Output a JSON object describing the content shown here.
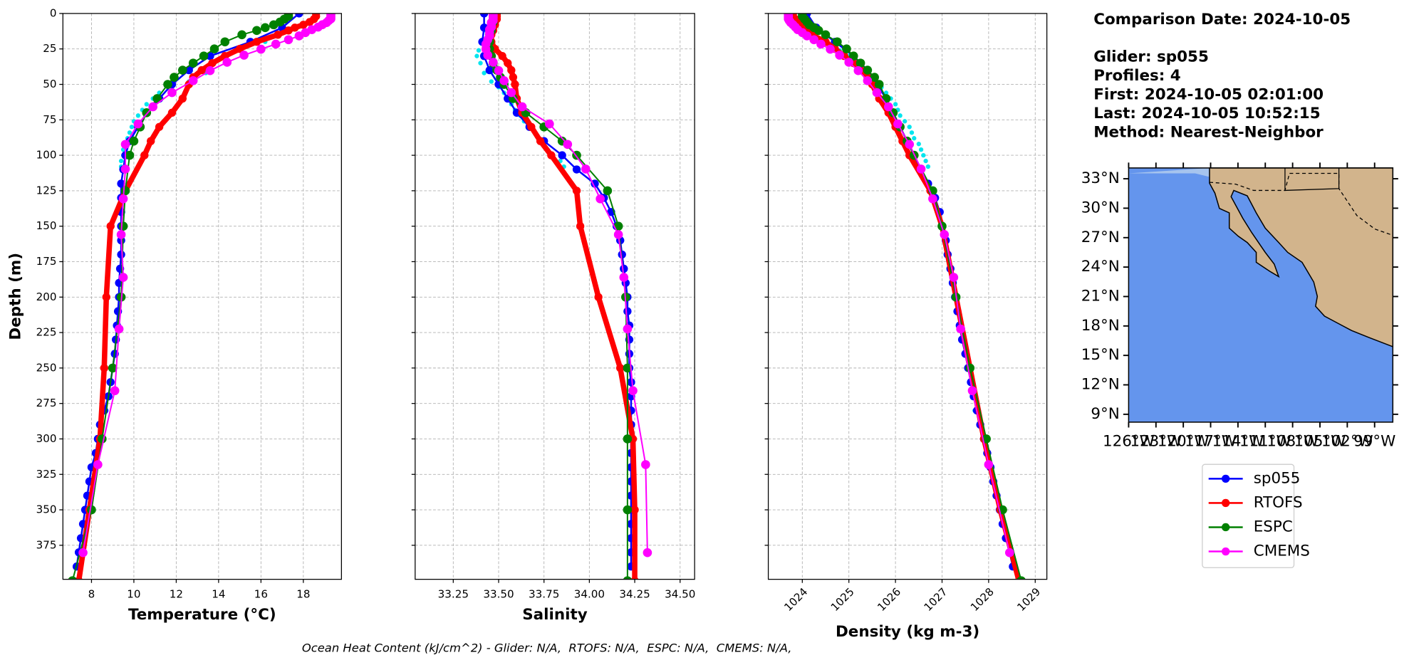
{
  "chart_data": {
    "type": "profile",
    "ylabel": "Depth (m)",
    "ylim": [
      0,
      399
    ],
    "yticks": [
      0,
      25,
      50,
      75,
      100,
      125,
      150,
      175,
      200,
      225,
      250,
      275,
      300,
      325,
      350,
      375
    ],
    "grid": true,
    "panels": [
      {
        "xlabel": "Temperature (°C)",
        "xlim": [
          6.65,
          19.8
        ],
        "xticks": [
          8,
          10,
          12,
          14,
          16,
          18
        ]
      },
      {
        "xlabel": "Salinity",
        "xlim": [
          33.04,
          34.58
        ],
        "xticks": [
          33.25,
          {
            "value": 33.5,
            "label": "33.50"
          },
          33.75,
          {
            "value": 34,
            "label": "34.00"
          },
          34.25,
          {
            "value": 34.5,
            "label": "34.50"
          }
        ]
      },
      {
        "xlabel": "Density (kg m-3)",
        "xlim": [
          1023.27,
          1029.25
        ],
        "xticks": [
          1024,
          1025,
          1026,
          1027,
          1028,
          1029
        ]
      }
    ],
    "scatter": {
      "color": "#00e5ee",
      "depth": [
        12,
        20,
        26,
        30,
        35,
        42,
        48,
        52,
        56,
        60,
        64,
        68,
        72,
        76,
        80,
        84,
        88,
        92,
        96,
        100,
        104,
        108,
        160,
        220,
        280,
        340,
        360,
        380
      ],
      "values": [
        [
          17.4,
          16.2,
          15.0,
          14.2,
          13.8,
          13.4,
          12.6,
          11.8,
          11.2,
          10.9,
          10.6,
          10.4,
          10.2,
          10.0,
          9.9,
          9.8,
          9.7,
          9.6,
          9.5,
          9.5,
          9.4,
          9.4,
          9.4,
          9.2,
          8.7,
          7.9,
          7.7,
          7.5
        ],
        [
          33.43,
          33.41,
          33.39,
          33.38,
          33.4,
          33.42,
          33.46,
          33.5,
          33.53,
          33.55,
          33.57,
          33.59,
          33.62,
          33.64,
          33.67,
          33.7,
          33.72,
          33.74,
          33.77,
          33.8,
          33.84,
          33.86,
          34.18,
          34.23,
          34.24,
          34.23,
          34.22,
          34.23
        ],
        [
          1024.2,
          1024.5,
          1024.8,
          1025.0,
          1025.2,
          1025.4,
          1025.55,
          1025.7,
          1025.8,
          1025.9,
          1026.0,
          1026.05,
          1026.1,
          1026.2,
          1026.3,
          1026.35,
          1026.4,
          1026.5,
          1026.55,
          1026.6,
          1026.65,
          1026.7,
          1027.1,
          1027.4,
          1027.7,
          1028.2,
          1028.3,
          1028.45
        ]
      ]
    },
    "series": [
      {
        "name": "sp055",
        "color": "#0000ff",
        "depth": [
          0,
          10,
          20,
          30,
          40,
          50,
          60,
          70,
          80,
          90,
          100,
          110,
          120,
          130,
          140,
          150,
          160,
          170,
          180,
          190,
          200,
          210,
          220,
          230,
          240,
          250,
          260,
          270,
          280,
          290,
          300,
          310,
          320,
          330,
          340,
          350,
          360,
          370,
          380,
          390
        ],
        "values": [
          [
            17.8,
            17.0,
            15.5,
            13.6,
            12.6,
            11.8,
            11.2,
            10.6,
            10.2,
            9.8,
            9.6,
            9.5,
            9.4,
            9.4,
            9.4,
            9.4,
            9.4,
            9.4,
            9.35,
            9.3,
            9.3,
            9.25,
            9.2,
            9.15,
            9.1,
            9.0,
            8.9,
            8.8,
            8.6,
            8.4,
            8.3,
            8.2,
            8.0,
            7.9,
            7.8,
            7.7,
            7.6,
            7.5,
            7.4,
            7.3
          ],
          [
            33.42,
            33.42,
            33.41,
            33.42,
            33.45,
            33.5,
            33.55,
            33.6,
            33.67,
            33.75,
            33.85,
            33.93,
            34.03,
            34.08,
            34.12,
            34.15,
            34.17,
            34.18,
            34.19,
            34.2,
            34.21,
            34.21,
            34.22,
            34.22,
            34.22,
            34.22,
            34.23,
            34.23,
            34.23,
            34.23,
            34.23,
            34.23,
            34.23,
            34.23,
            34.23,
            34.23,
            34.23,
            34.23,
            34.23,
            34.23
          ],
          [
            1024.1,
            1024.3,
            1024.7,
            1025.1,
            1025.4,
            1025.6,
            1025.8,
            1025.95,
            1026.1,
            1026.25,
            1026.4,
            1026.55,
            1026.7,
            1026.85,
            1026.95,
            1027.0,
            1027.08,
            1027.12,
            1027.18,
            1027.23,
            1027.28,
            1027.33,
            1027.38,
            1027.43,
            1027.5,
            1027.56,
            1027.62,
            1027.68,
            1027.75,
            1027.82,
            1027.9,
            1027.97,
            1028.04,
            1028.1,
            1028.17,
            1028.24,
            1028.3,
            1028.37,
            1028.45,
            1028.52
          ]
        ]
      },
      {
        "name": "RTOFS",
        "color": "#ff0000",
        "depth": [
          0,
          2,
          4,
          6,
          8,
          10,
          12,
          15,
          20,
          25,
          30,
          35,
          40,
          45,
          50,
          60,
          70,
          80,
          90,
          100,
          125,
          150,
          200,
          250,
          300,
          350,
          400
        ],
        "values": [
          [
            18.6,
            18.6,
            18.5,
            18.3,
            18.0,
            17.6,
            17.3,
            16.8,
            15.8,
            15.0,
            14.3,
            13.7,
            13.2,
            12.8,
            12.6,
            12.3,
            11.8,
            11.2,
            10.8,
            10.5,
            9.6,
            8.9,
            8.7,
            8.6,
            8.4,
            7.9,
            7.4
          ],
          [
            33.49,
            33.49,
            33.49,
            33.48,
            33.48,
            33.47,
            33.47,
            33.46,
            33.46,
            33.48,
            33.52,
            33.55,
            33.57,
            33.58,
            33.59,
            33.6,
            33.63,
            33.68,
            33.73,
            33.79,
            33.93,
            33.95,
            34.05,
            34.17,
            34.24,
            34.25,
            34.25
          ],
          [
            1023.8,
            1023.8,
            1023.85,
            1023.9,
            1023.95,
            1024.0,
            1024.1,
            1024.2,
            1024.5,
            1024.7,
            1024.9,
            1025.1,
            1025.25,
            1025.4,
            1025.5,
            1025.65,
            1025.85,
            1026.0,
            1026.15,
            1026.3,
            1026.75,
            1027.0,
            1027.3,
            1027.6,
            1027.9,
            1028.25,
            1028.65
          ]
        ]
      },
      {
        "name": "ESPC",
        "color": "#008000",
        "depth": [
          0,
          2,
          4,
          6,
          8,
          10,
          12,
          15,
          20,
          25,
          30,
          35,
          40,
          45,
          50,
          60,
          70,
          80,
          90,
          100,
          125,
          150,
          200,
          250,
          300,
          350,
          400
        ],
        "values": [
          [
            17.3,
            17.3,
            17.1,
            16.9,
            16.6,
            16.2,
            15.8,
            15.1,
            14.3,
            13.8,
            13.3,
            12.8,
            12.3,
            11.9,
            11.6,
            11.1,
            10.6,
            10.3,
            10.0,
            9.8,
            9.6,
            9.5,
            9.4,
            9.0,
            8.5,
            8.0,
            7.1
          ],
          [
            33.47,
            33.47,
            33.47,
            33.47,
            33.46,
            33.46,
            33.46,
            33.45,
            33.45,
            33.45,
            33.46,
            33.47,
            33.49,
            33.51,
            33.53,
            33.58,
            33.65,
            33.75,
            33.85,
            33.93,
            34.1,
            34.16,
            34.2,
            34.21,
            34.21,
            34.21,
            34.21
          ],
          [
            1024.0,
            1024.0,
            1024.05,
            1024.1,
            1024.15,
            1024.25,
            1024.35,
            1024.5,
            1024.75,
            1024.95,
            1025.1,
            1025.25,
            1025.4,
            1025.55,
            1025.65,
            1025.8,
            1025.95,
            1026.1,
            1026.25,
            1026.4,
            1026.8,
            1027.0,
            1027.3,
            1027.6,
            1027.95,
            1028.3,
            1028.7
          ]
        ]
      },
      {
        "name": "CMEMS",
        "color": "#ff00ff",
        "depth": [
          0.5,
          1.5,
          2.6,
          3.8,
          5,
          6.4,
          7.9,
          9.6,
          11.4,
          13.5,
          15.8,
          18.5,
          21.6,
          25.2,
          29.4,
          34.4,
          40.3,
          47.4,
          55.8,
          65.8,
          77.9,
          92.3,
          109.7,
          130.7,
          155.9,
          186.1,
          222.5,
          266.0,
          318.1,
          380.2
        ],
        "values": [
          [
            19.3,
            19.3,
            19.3,
            19.3,
            19.2,
            19.1,
            18.9,
            18.7,
            18.4,
            18.1,
            17.8,
            17.3,
            16.7,
            16.0,
            15.2,
            14.4,
            13.6,
            12.8,
            11.8,
            10.9,
            10.2,
            9.6,
            9.6,
            9.5,
            9.4,
            9.5,
            9.3,
            9.1,
            8.3,
            7.6
          ],
          [
            33.47,
            33.47,
            33.47,
            33.47,
            33.47,
            33.46,
            33.46,
            33.46,
            33.45,
            33.45,
            33.45,
            33.44,
            33.43,
            33.43,
            33.44,
            33.47,
            33.5,
            33.53,
            33.57,
            33.63,
            33.78,
            33.88,
            33.98,
            34.06,
            34.16,
            34.19,
            34.21,
            34.24,
            34.31,
            34.32
          ],
          [
            1023.7,
            1023.7,
            1023.7,
            1023.7,
            1023.72,
            1023.75,
            1023.8,
            1023.85,
            1023.9,
            1024.0,
            1024.1,
            1024.25,
            1024.4,
            1024.6,
            1024.8,
            1025.0,
            1025.2,
            1025.4,
            1025.6,
            1025.85,
            1026.05,
            1026.3,
            1026.55,
            1026.8,
            1027.05,
            1027.25,
            1027.4,
            1027.65,
            1028.0,
            1028.45
          ]
        ]
      }
    ],
    "info": [
      "Comparison Date: 2024-10-05",
      "Glider: sp055",
      "Profiles: 4",
      "First: 2024-10-05 02:01:00",
      "Last: 2024-10-05 10:52:15",
      "Method: Nearest-Neighbor"
    ],
    "map": {
      "latlim": [
        8.2,
        34.1
      ],
      "lonlim": [
        -126,
        -97
      ],
      "latticks": [
        {
          "value": 9,
          "label": "9°N"
        },
        {
          "value": 12,
          "label": "12°N"
        },
        {
          "value": 15,
          "label": "15°N"
        },
        {
          "value": 18,
          "label": "18°N"
        },
        {
          "value": 21,
          "label": "21°N"
        },
        {
          "value": 24,
          "label": "24°N"
        },
        {
          "value": 27,
          "label": "27°N"
        },
        {
          "value": 30,
          "label": "30°N"
        },
        {
          "value": 33,
          "label": "33°N"
        }
      ],
      "lonticks": [
        {
          "value": -126,
          "label": "126°W"
        },
        {
          "value": -123,
          "label": "123°W"
        },
        {
          "value": -120,
          "label": "120°W"
        },
        {
          "value": -117,
          "label": "117°W"
        },
        {
          "value": -114,
          "label": "114°W"
        },
        {
          "value": -111,
          "label": "111°W"
        },
        {
          "value": -108,
          "label": "108°W"
        },
        {
          "value": -105,
          "label": "105°W"
        },
        {
          "value": -102,
          "label": "102°W"
        },
        {
          "value": -99,
          "label": "99°W"
        }
      ]
    },
    "footnote": "Ocean Heat Content (kJ/cm^2) - Glider: N/A,  RTOFS: N/A,  ESPC: N/A,  CMEMS: N/A,"
  }
}
